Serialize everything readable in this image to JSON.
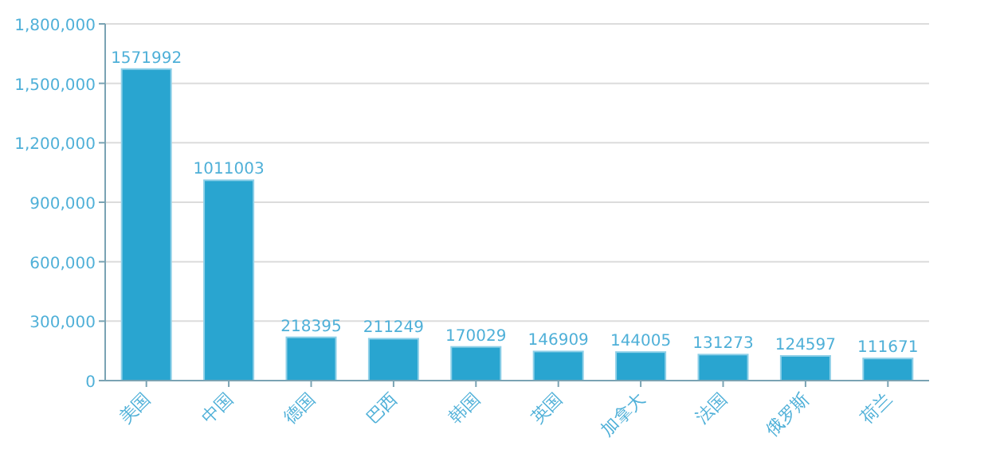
{
  "chart_data": {
    "type": "bar",
    "categories": [
      "美国",
      "中国",
      "德国",
      "巴西",
      "韩国",
      "英国",
      "加拿大",
      "法国",
      "俄罗斯",
      "荷兰"
    ],
    "values": [
      1571992,
      1011003,
      218395,
      211249,
      170029,
      146909,
      144005,
      131273,
      124597,
      111671
    ],
    "color": "#29a5d0",
    "ylim": [
      0,
      1800000
    ],
    "yticks": [
      0,
      {
        "value": 300000,
        "label": "300,000"
      },
      {
        "value": 600000,
        "label": "600,000"
      },
      {
        "value": 900000,
        "label": "900,000"
      },
      {
        "value": 1200000,
        "label": "1,200,000"
      },
      {
        "value": 1500000,
        "label": "1,500,000"
      },
      {
        "value": 1800000,
        "label": "1,800,000"
      }
    ],
    "data_labels": true,
    "grid": "y"
  }
}
